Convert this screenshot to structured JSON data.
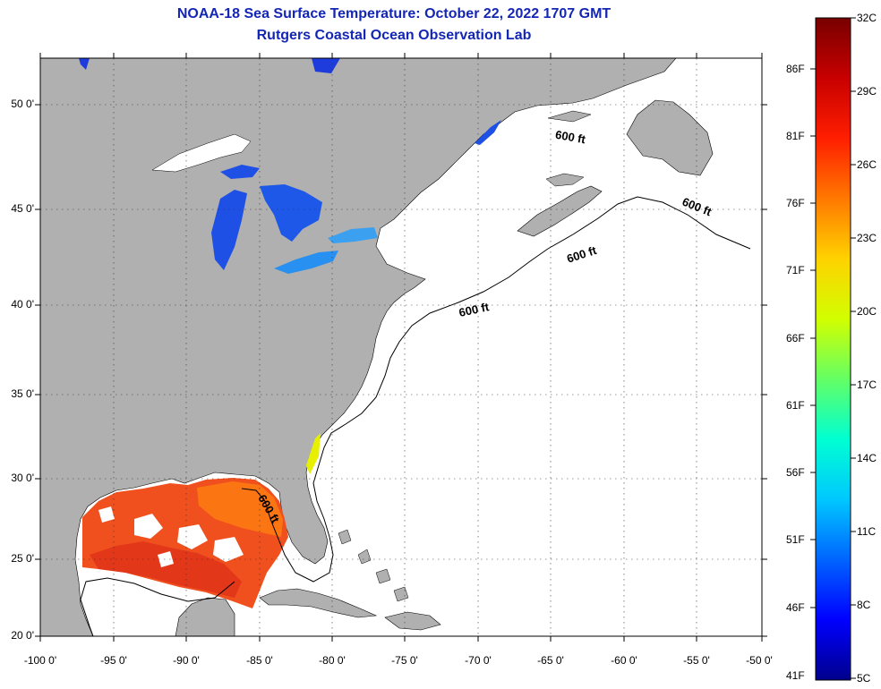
{
  "header": {
    "title": "NOAA-18 Sea Surface Temperature:  October 22, 2022 1707 GMT",
    "subtitle": "Rutgers Coastal Ocean Observation Lab"
  },
  "map": {
    "lat_labels": [
      "50 0'",
      "45 0'",
      "40 0'",
      "35 0'",
      "30 0'",
      "25 0'",
      "20 0'"
    ],
    "lon_labels": [
      "-100 0'",
      "-95 0'",
      "-90 0'",
      "-85 0'",
      "-80 0'",
      "-75 0'",
      "-70 0'",
      "-65 0'",
      "-60 0'",
      "-55 0'",
      "-50 0'"
    ],
    "contour_label": "600 ft",
    "colors": {
      "land": "#b0b0b0",
      "ocean_cloud": "#ffffff",
      "gulf_warm": "#f0501e",
      "gulf_hot": "#e0321a",
      "lakes": "#1e50e6",
      "lakes_light": "#2890f0"
    }
  },
  "colorbar": {
    "fahrenheit_labels": [
      "86F",
      "81F",
      "76F",
      "71F",
      "66F",
      "61F",
      "56F",
      "51F",
      "46F",
      "41F"
    ],
    "celsius_labels": [
      "32C",
      "29C",
      "26C",
      "23C",
      "20C",
      "17C",
      "14C",
      "11C",
      "8C",
      "5C"
    ],
    "colors": [
      "#00008c",
      "#0000ff",
      "#0064ff",
      "#00c8ff",
      "#00ffd2",
      "#64ff64",
      "#d2ff00",
      "#ffd200",
      "#ff7800",
      "#ff1e00",
      "#c80000",
      "#780000"
    ]
  }
}
